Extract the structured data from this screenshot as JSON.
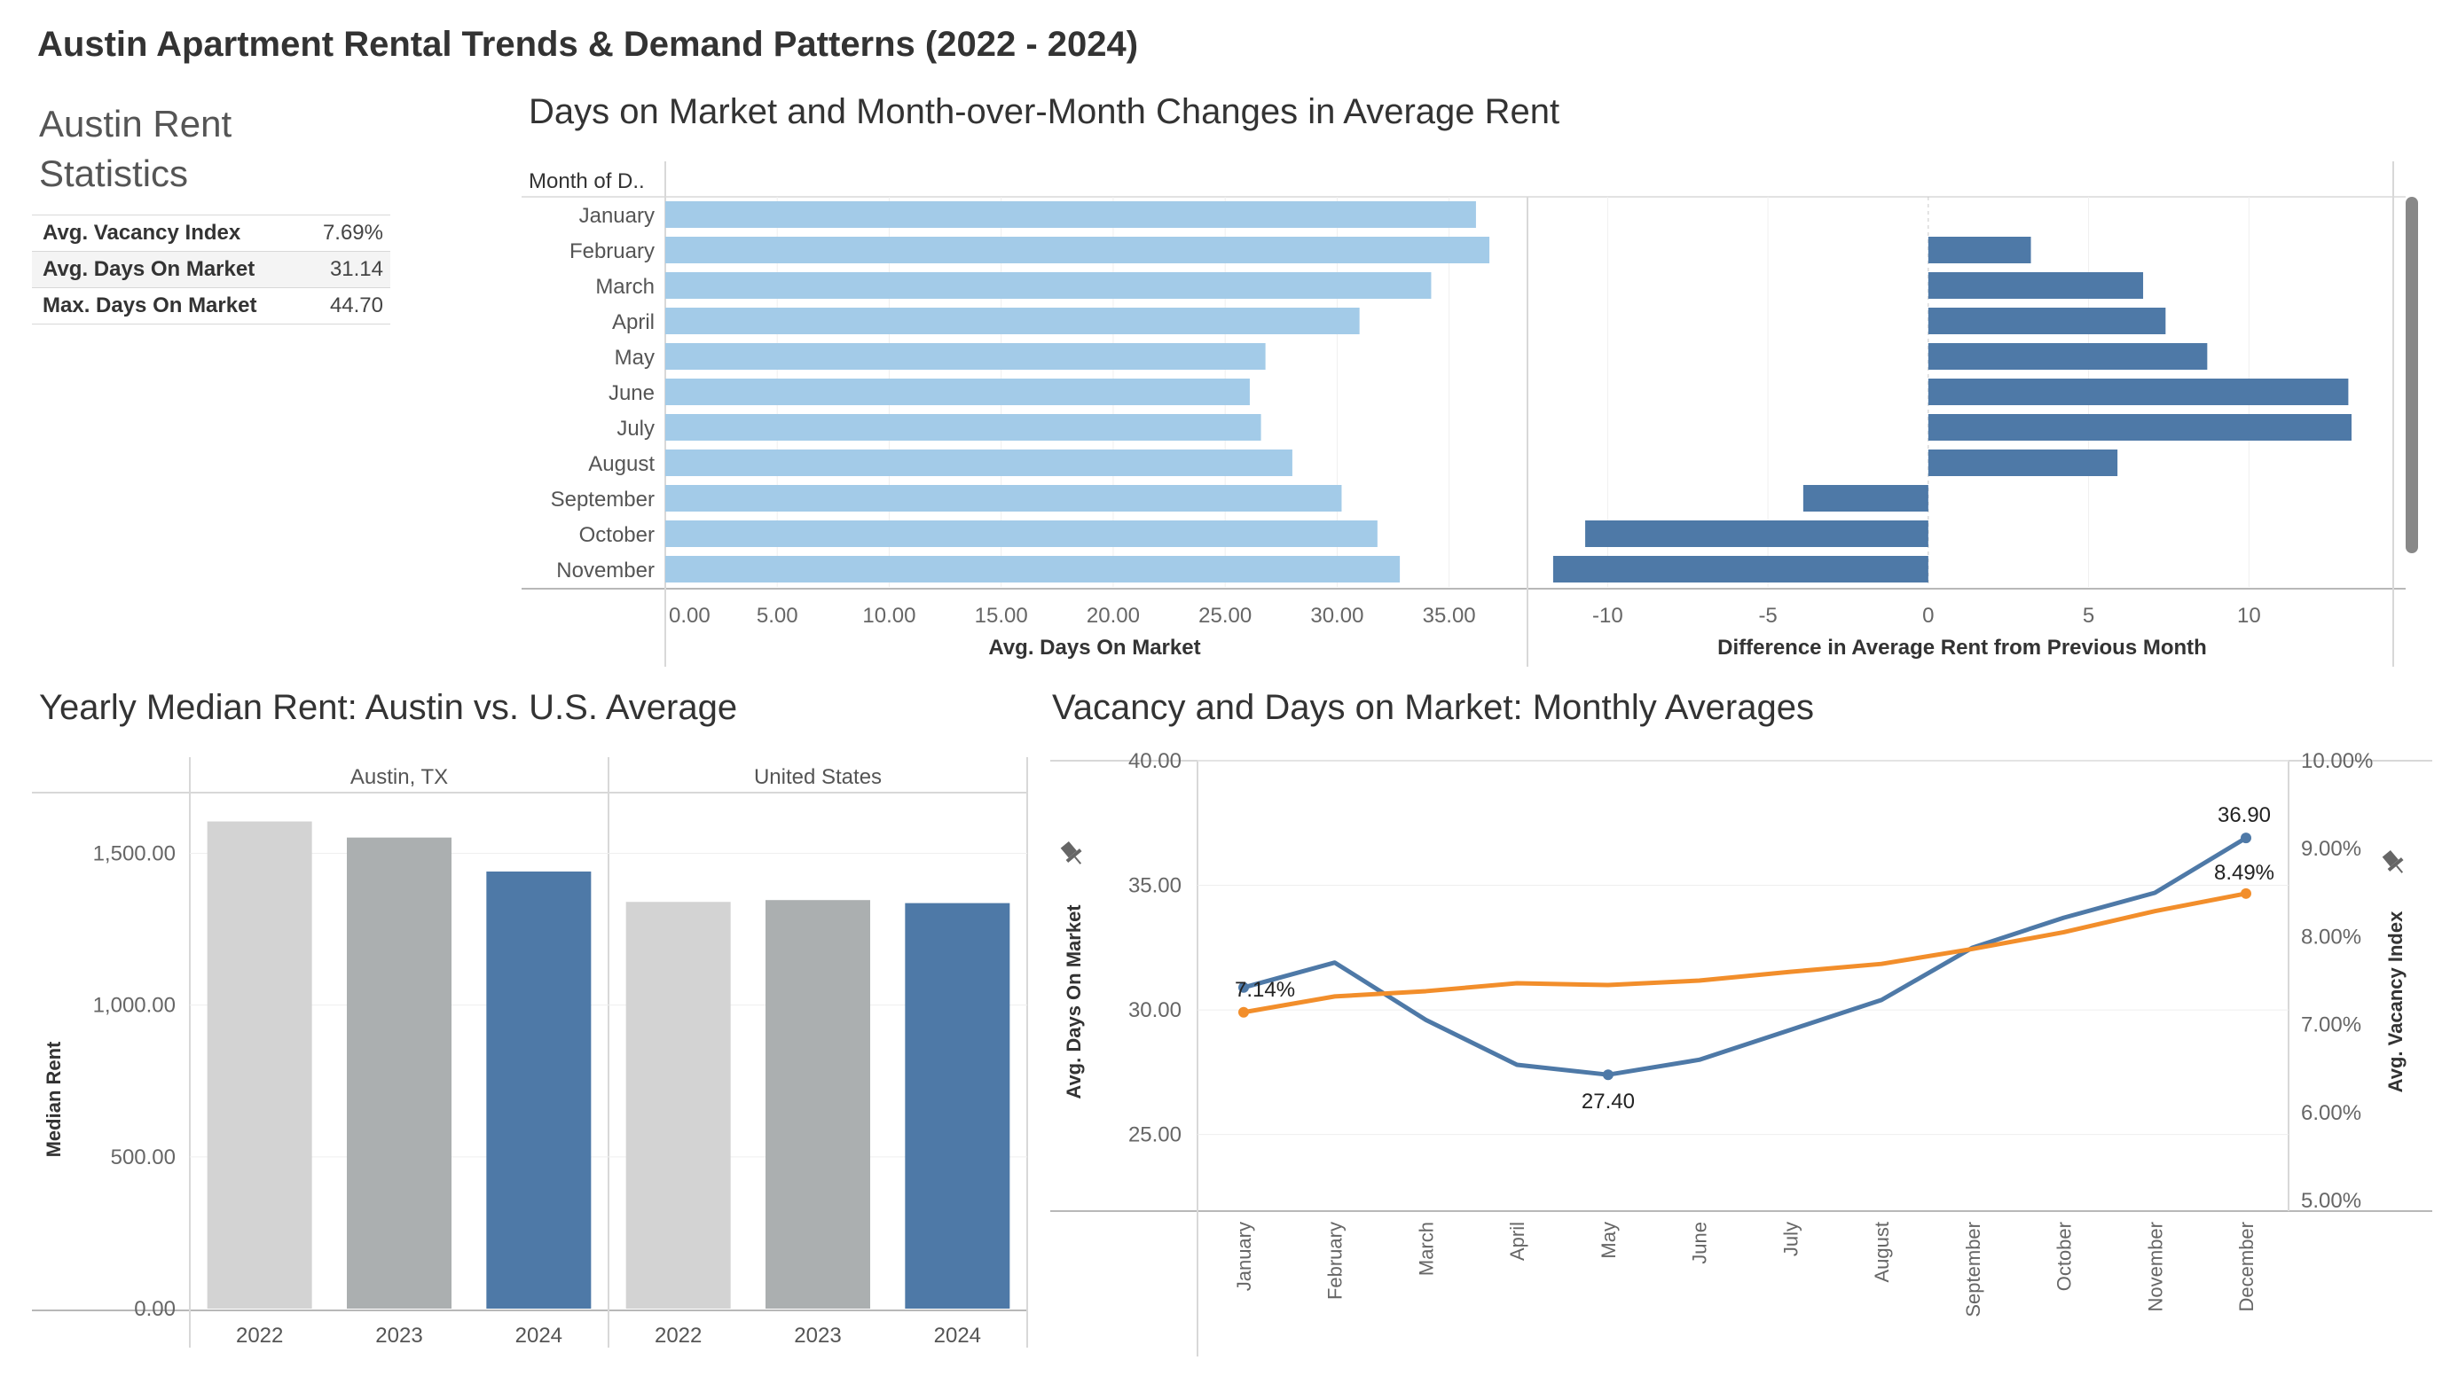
{
  "dashboard": {
    "title": "Austin Apartment Rental Trends & Demand Patterns (2022 - 2024)"
  },
  "stats": {
    "title": "Austin Rent Statistics",
    "rows": [
      {
        "label": "Avg. Vacancy Index",
        "value": "7.69%"
      },
      {
        "label": "Avg. Days On Market",
        "value": "31.14"
      },
      {
        "label": "Max. Days On Market",
        "value": "44.70"
      }
    ]
  },
  "colors": {
    "light_blue": "#a3cbe8",
    "steel_blue": "#4e79a7",
    "orange": "#f28e2b",
    "gray_light": "#d3d3d3",
    "gray_mid": "#abafb0"
  },
  "chart_data": [
    {
      "id": "days-on-market",
      "type": "bar",
      "orientation": "horizontal",
      "title": "Days on Market and Month-over-Month Changes in Average Rent",
      "row_header": "Month of D..",
      "categories": [
        "January",
        "February",
        "March",
        "April",
        "May",
        "June",
        "July",
        "August",
        "September",
        "October",
        "November"
      ],
      "values": [
        36.2,
        36.8,
        34.2,
        31.0,
        26.8,
        26.1,
        26.6,
        28.0,
        30.2,
        31.8,
        32.8
      ],
      "xlabel": "Avg. Days On Market",
      "xlim": [
        0,
        38.5
      ],
      "xticks": [
        "0.00",
        "5.00",
        "10.00",
        "15.00",
        "20.00",
        "25.00",
        "30.00",
        "35.00"
      ],
      "color": "#a3cbe8"
    },
    {
      "id": "rent-difference",
      "type": "bar",
      "orientation": "horizontal",
      "categories": [
        "January",
        "February",
        "March",
        "April",
        "May",
        "June",
        "July",
        "August",
        "September",
        "October",
        "November"
      ],
      "values": [
        null,
        3.2,
        6.7,
        7.4,
        8.7,
        13.1,
        13.2,
        5.9,
        -3.9,
        -10.7,
        -11.7
      ],
      "xlabel": "Difference in Average Rent from Previous Month",
      "xlim": [
        -12.5,
        14.5
      ],
      "xticks": [
        "-10",
        "-5",
        "0",
        "5",
        "10"
      ],
      "color": "#4e79a7"
    },
    {
      "id": "median-rent",
      "type": "bar",
      "title": "Yearly Median Rent: Austin vs. U.S. Average",
      "ylabel": "Median Rent",
      "ylim": [
        0,
        1700
      ],
      "yticks": [
        "0.00",
        "500.00",
        "1,000.00",
        "1,500.00"
      ],
      "panels": [
        {
          "name": "Austin, TX",
          "categories": [
            "2022",
            "2023",
            "2024"
          ],
          "values": [
            1605,
            1552,
            1440
          ]
        },
        {
          "name": "United States",
          "categories": [
            "2022",
            "2023",
            "2024"
          ],
          "values": [
            1340,
            1346,
            1336
          ]
        }
      ],
      "year_colors": [
        "#d3d3d3",
        "#abafb0",
        "#4e79a7"
      ]
    },
    {
      "id": "vacancy-days",
      "type": "line",
      "title": "Vacancy and Days on Market: Monthly Averages",
      "categories": [
        "January",
        "February",
        "March",
        "April",
        "May",
        "June",
        "July",
        "August",
        "September",
        "October",
        "November",
        "December"
      ],
      "series": [
        {
          "name": "Avg. Days On Market",
          "axis": "left",
          "color": "#4e79a7",
          "values": [
            30.9,
            31.9,
            29.6,
            27.8,
            27.4,
            28.0,
            29.2,
            30.4,
            32.5,
            33.7,
            34.7,
            36.9
          ]
        },
        {
          "name": "Avg. Vacancy Index",
          "axis": "right",
          "color": "#f28e2b",
          "values": [
            7.14,
            7.32,
            7.38,
            7.47,
            7.45,
            7.5,
            7.6,
            7.69,
            7.86,
            8.05,
            8.29,
            8.49
          ]
        }
      ],
      "ylabel": "Avg. Days On Market",
      "ylim": [
        22.0,
        40.0
      ],
      "yticks": [
        "25.00",
        "30.00",
        "35.00",
        "40.00"
      ],
      "y2label": "Avg. Vacancy Index",
      "y2lim": [
        4.9,
        10.0
      ],
      "y2ticks": [
        "5.00%",
        "6.00%",
        "7.00%",
        "8.00%",
        "9.00%",
        "10.00%"
      ],
      "annotations": [
        "7.14%",
        "27.40",
        "36.90",
        "8.49%"
      ]
    }
  ]
}
